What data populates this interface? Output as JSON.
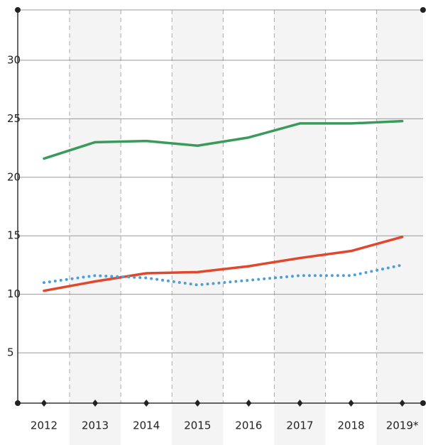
{
  "chart_data": {
    "type": "line",
    "categories": [
      "2012",
      "2013",
      "2014",
      "2015",
      "2016",
      "2017",
      "2018",
      "2019*"
    ],
    "series": [
      {
        "color": "#3a9a5b",
        "style": "solid",
        "values": [
          21.6,
          23.0,
          23.1,
          22.7,
          23.4,
          24.6,
          24.6,
          24.8
        ]
      },
      {
        "color": "#e0472b",
        "style": "solid",
        "values": [
          10.3,
          11.1,
          11.8,
          11.9,
          12.4,
          13.1,
          13.7,
          14.9
        ]
      },
      {
        "color": "#4a9fd8",
        "style": "dotted",
        "values": [
          11.0,
          11.6,
          11.4,
          10.8,
          11.2,
          11.6,
          11.6,
          12.5
        ]
      }
    ],
    "ylim": [
      0.7,
      34.3
    ],
    "yticks": [
      5,
      10,
      15,
      20,
      25,
      30
    ],
    "grid": true
  }
}
